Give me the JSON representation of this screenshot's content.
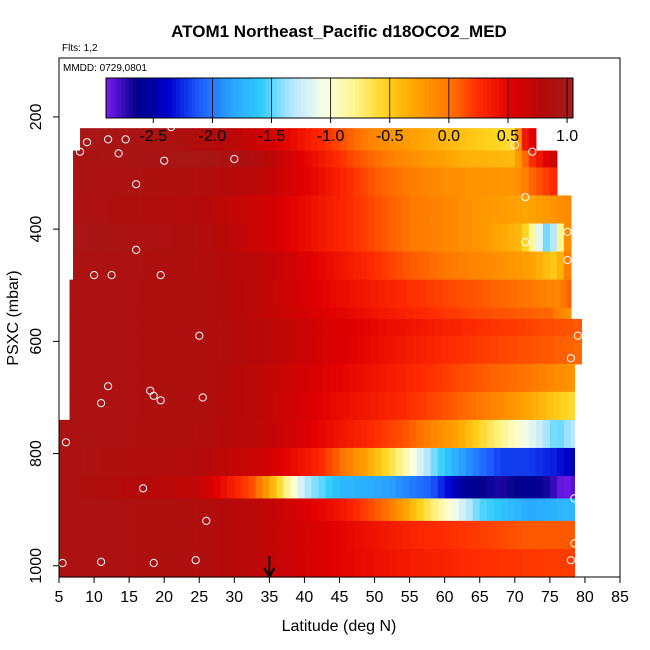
{
  "chart_data": {
    "type": "heatmap",
    "title": "ATOM1 Northeast_Pacific d18OCO2_MED",
    "info_flts": "Flts: 1,2",
    "info_mmdd": "MMDD: 0729,0801",
    "xlabel": "Latitude (deg N)",
    "ylabel": "PSXC (mbar)",
    "xlim": [
      5,
      85
    ],
    "ylim": [
      1020,
      95
    ],
    "x_ticks": [
      5,
      10,
      15,
      20,
      25,
      30,
      35,
      40,
      45,
      50,
      55,
      60,
      65,
      70,
      75,
      80,
      85
    ],
    "y_ticks": [
      200,
      400,
      600,
      800,
      1000
    ],
    "colorbar": {
      "min": -2.9,
      "max": 1.05,
      "ticks": [
        -2.5,
        -2.0,
        -1.5,
        -1.0,
        -0.5,
        0.0,
        0.5,
        1.0
      ],
      "tick_labels": [
        "-2.5",
        "-2.0",
        "-1.5",
        "-1.0",
        "-0.5",
        "0.0",
        "0.5",
        "1.0"
      ],
      "colors": [
        "#7a1cf0",
        "#00008b",
        "#0000d0",
        "#1c5cff",
        "#2aa2ff",
        "#30cdfa",
        "#b9e8ff",
        "#f8ffe6",
        "#fff58a",
        "#ffd21c",
        "#ffa000",
        "#ff7800",
        "#ff2a00",
        "#e00000",
        "#b40a0a",
        "#a01e1e"
      ]
    },
    "rows": [
      {
        "p_top": 220,
        "p_bot": 260,
        "lat_min": 8,
        "lat_max": 73,
        "breaks": [
          [
            8,
            0.95
          ],
          [
            20,
            0.9
          ],
          [
            30,
            0.75
          ],
          [
            36,
            0.55
          ],
          [
            43,
            0.25
          ],
          [
            50,
            -0.1
          ],
          [
            57,
            -0.3
          ],
          [
            65,
            -0.5
          ],
          [
            70,
            -0.6
          ],
          [
            71,
            0.3
          ],
          [
            73,
            0.6
          ]
        ]
      },
      {
        "p_top": 260,
        "p_bot": 290,
        "lat_min": 7,
        "lat_max": 76,
        "breaks": [
          [
            7,
            0.9
          ],
          [
            25,
            0.95
          ],
          [
            33,
            0.85
          ],
          [
            40,
            0.5
          ],
          [
            47,
            0.15
          ],
          [
            55,
            -0.15
          ],
          [
            63,
            -0.35
          ],
          [
            70,
            -0.4
          ],
          [
            72,
            0.2
          ],
          [
            76,
            0.7
          ]
        ]
      },
      {
        "p_top": 290,
        "p_bot": 340,
        "lat_min": 7,
        "lat_max": 76,
        "breaks": [
          [
            7,
            0.9
          ],
          [
            25,
            0.85
          ],
          [
            35,
            0.7
          ],
          [
            42,
            0.45
          ],
          [
            50,
            0.1
          ],
          [
            60,
            -0.15
          ],
          [
            70,
            -0.2
          ],
          [
            73,
            0.1
          ],
          [
            76,
            0.3
          ]
        ]
      },
      {
        "p_top": 340,
        "p_bot": 390,
        "lat_min": 7,
        "lat_max": 78,
        "breaks": [
          [
            7,
            0.9
          ],
          [
            25,
            0.8
          ],
          [
            35,
            0.6
          ],
          [
            45,
            0.3
          ],
          [
            55,
            0.0
          ],
          [
            65,
            -0.2
          ],
          [
            72,
            -0.3
          ],
          [
            78,
            -0.1
          ]
        ]
      },
      {
        "p_top": 390,
        "p_bot": 440,
        "lat_min": 7,
        "lat_max": 78,
        "breaks": [
          [
            7,
            0.95
          ],
          [
            25,
            0.85
          ],
          [
            35,
            0.6
          ],
          [
            45,
            0.3
          ],
          [
            55,
            0.0
          ],
          [
            65,
            -0.2
          ],
          [
            71,
            -0.4
          ],
          [
            73,
            -1.0
          ],
          [
            75,
            -1.6
          ],
          [
            76.5,
            -0.8
          ],
          [
            78,
            0.2
          ]
        ]
      },
      {
        "p_top": 440,
        "p_bot": 490,
        "lat_min": 7,
        "lat_max": 78,
        "breaks": [
          [
            7,
            0.9
          ],
          [
            25,
            0.85
          ],
          [
            35,
            0.7
          ],
          [
            45,
            0.4
          ],
          [
            55,
            0.1
          ],
          [
            65,
            -0.1
          ],
          [
            72,
            -0.25
          ],
          [
            76,
            -0.5
          ],
          [
            78,
            0.1
          ]
        ]
      },
      {
        "p_top": 490,
        "p_bot": 540,
        "lat_min": 6.5,
        "lat_max": 78,
        "breaks": [
          [
            6.5,
            0.9
          ],
          [
            25,
            0.85
          ],
          [
            35,
            0.7
          ],
          [
            45,
            0.45
          ],
          [
            55,
            0.25
          ],
          [
            65,
            0.1
          ],
          [
            72,
            0.0
          ],
          [
            76,
            -0.1
          ],
          [
            78,
            0.1
          ]
        ]
      },
      {
        "p_top": 540,
        "p_bot": 560,
        "lat_min": 6.5,
        "lat_max": 78,
        "breaks": [
          [
            6.5,
            0.9
          ],
          [
            25,
            0.85
          ],
          [
            35,
            0.7
          ],
          [
            45,
            0.5
          ],
          [
            55,
            0.3
          ],
          [
            65,
            0.15
          ],
          [
            75,
            0.05
          ],
          [
            78,
            -0.2
          ]
        ]
      },
      {
        "p_top": 560,
        "p_bot": 590,
        "lat_min": 6.5,
        "lat_max": 79.5,
        "breaks": [
          [
            6.5,
            0.9
          ],
          [
            25,
            0.85
          ],
          [
            35,
            0.75
          ],
          [
            45,
            0.55
          ],
          [
            55,
            0.4
          ],
          [
            65,
            0.25
          ],
          [
            75,
            0.15
          ],
          [
            79.5,
            0.1
          ]
        ]
      },
      {
        "p_top": 590,
        "p_bot": 640,
        "lat_min": 6.5,
        "lat_max": 79.5,
        "breaks": [
          [
            6.5,
            0.9
          ],
          [
            25,
            0.85
          ],
          [
            35,
            0.75
          ],
          [
            45,
            0.55
          ],
          [
            55,
            0.35
          ],
          [
            65,
            0.2
          ],
          [
            75,
            0.1
          ],
          [
            79.5,
            0.05
          ]
        ]
      },
      {
        "p_top": 640,
        "p_bot": 690,
        "lat_min": 6.5,
        "lat_max": 78.5,
        "breaks": [
          [
            6.5,
            0.9
          ],
          [
            25,
            0.85
          ],
          [
            35,
            0.7
          ],
          [
            45,
            0.5
          ],
          [
            55,
            0.3
          ],
          [
            65,
            0.1
          ],
          [
            72,
            0.0
          ],
          [
            78.5,
            -0.2
          ]
        ]
      },
      {
        "p_top": 690,
        "p_bot": 740,
        "lat_min": 6.5,
        "lat_max": 78.5,
        "breaks": [
          [
            6.5,
            0.9
          ],
          [
            25,
            0.85
          ],
          [
            35,
            0.7
          ],
          [
            45,
            0.45
          ],
          [
            55,
            0.25
          ],
          [
            65,
            0.0
          ],
          [
            72,
            -0.3
          ],
          [
            78.5,
            -0.6
          ]
        ]
      },
      {
        "p_top": 740,
        "p_bot": 790,
        "lat_min": 5,
        "lat_max": 78.5,
        "breaks": [
          [
            5,
            0.9
          ],
          [
            25,
            0.85
          ],
          [
            35,
            0.7
          ],
          [
            45,
            0.4
          ],
          [
            55,
            0.1
          ],
          [
            62,
            -0.3
          ],
          [
            68,
            -0.8
          ],
          [
            73,
            -1.2
          ],
          [
            76,
            -1.5
          ],
          [
            78.5,
            -1.3
          ]
        ]
      },
      {
        "p_top": 790,
        "p_bot": 840,
        "lat_min": 5,
        "lat_max": 78.5,
        "breaks": [
          [
            5,
            0.9
          ],
          [
            25,
            0.8
          ],
          [
            35,
            0.6
          ],
          [
            42,
            0.3
          ],
          [
            48,
            -0.2
          ],
          [
            53,
            -0.7
          ],
          [
            58,
            -1.4
          ],
          [
            63,
            -1.9
          ],
          [
            68,
            -2.2
          ],
          [
            72,
            -2.2
          ],
          [
            76,
            -2.3
          ],
          [
            78.5,
            -2.5
          ]
        ]
      },
      {
        "p_top": 840,
        "p_bot": 880,
        "lat_min": 5,
        "lat_max": 78.5,
        "breaks": [
          [
            5,
            0.9
          ],
          [
            25,
            0.7
          ],
          [
            33,
            0.1
          ],
          [
            36,
            -0.5
          ],
          [
            40,
            -1.3
          ],
          [
            45,
            -1.7
          ],
          [
            52,
            -1.85
          ],
          [
            58,
            -2.1
          ],
          [
            63,
            -2.6
          ],
          [
            68,
            -2.7
          ],
          [
            72,
            -2.6
          ],
          [
            75,
            -2.7
          ],
          [
            77,
            -2.9
          ],
          [
            78.5,
            -2.8
          ]
        ]
      },
      {
        "p_top": 880,
        "p_bot": 920,
        "lat_min": 5,
        "lat_max": 78.5,
        "breaks": [
          [
            5,
            0.9
          ],
          [
            25,
            0.85
          ],
          [
            35,
            0.7
          ],
          [
            45,
            0.4
          ],
          [
            52,
            0.0
          ],
          [
            58,
            -0.7
          ],
          [
            65,
            -1.5
          ],
          [
            72,
            -1.8
          ],
          [
            78.5,
            -1.7
          ]
        ]
      },
      {
        "p_top": 920,
        "p_bot": 970,
        "lat_min": 5,
        "lat_max": 78.5,
        "breaks": [
          [
            5,
            0.9
          ],
          [
            25,
            0.85
          ],
          [
            35,
            0.7
          ],
          [
            45,
            0.5
          ],
          [
            55,
            0.3
          ],
          [
            65,
            0.2
          ],
          [
            72,
            0.1
          ],
          [
            78.5,
            0.1
          ]
        ]
      },
      {
        "p_top": 970,
        "p_bot": 1020,
        "lat_min": 5,
        "lat_max": 78.5,
        "breaks": [
          [
            5,
            0.9
          ],
          [
            25,
            0.85
          ],
          [
            35,
            0.7
          ],
          [
            45,
            0.5
          ],
          [
            55,
            0.35
          ],
          [
            65,
            0.25
          ],
          [
            75,
            0.2
          ],
          [
            78.5,
            0.2
          ]
        ]
      }
    ],
    "sample_points": [
      [
        21,
        218
      ],
      [
        12,
        240
      ],
      [
        14.5,
        240
      ],
      [
        9,
        245
      ],
      [
        13.5,
        265
      ],
      [
        8,
        262
      ],
      [
        20,
        278
      ],
      [
        30,
        275
      ],
      [
        16,
        320
      ],
      [
        72.5,
        262
      ],
      [
        70,
        250
      ],
      [
        71.5,
        343
      ],
      [
        71.5,
        423
      ],
      [
        77.5,
        405
      ],
      [
        77.5,
        455
      ],
      [
        16,
        437
      ],
      [
        10,
        482
      ],
      [
        12.5,
        482
      ],
      [
        19.5,
        482
      ],
      [
        25,
        590
      ],
      [
        79,
        590
      ],
      [
        78,
        630
      ],
      [
        12,
        680
      ],
      [
        11,
        710
      ],
      [
        18,
        688
      ],
      [
        19.5,
        705
      ],
      [
        18.5,
        697
      ],
      [
        25.5,
        700
      ],
      [
        5,
        715
      ],
      [
        6,
        780
      ],
      [
        17,
        862
      ],
      [
        26,
        920
      ],
      [
        78.5,
        880
      ],
      [
        78.5,
        960
      ],
      [
        5.5,
        995
      ],
      [
        11,
        993
      ],
      [
        18.5,
        995
      ],
      [
        24.5,
        990
      ],
      [
        78,
        990
      ]
    ],
    "annotations": [
      {
        "type": "arrow",
        "lat": 35,
        "description": "location marker at 35 deg N"
      }
    ]
  }
}
